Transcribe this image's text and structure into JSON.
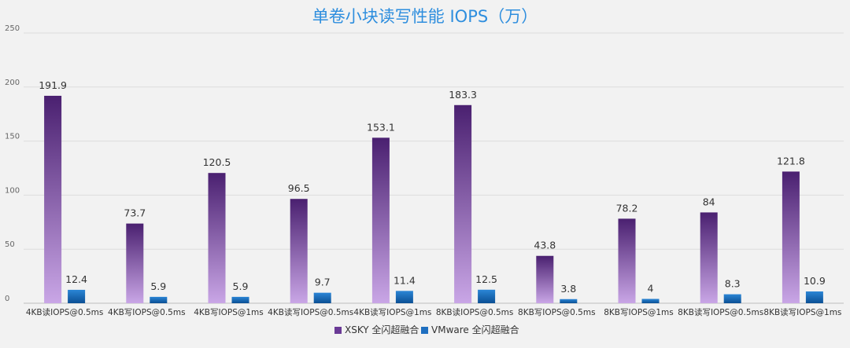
{
  "chart_data": {
    "type": "bar",
    "title": "单卷小块读写性能 IOPS（万）",
    "xlabel": "",
    "ylabel": "",
    "ylim": [
      0,
      250
    ],
    "yticks": [
      0,
      50,
      100,
      150,
      200,
      250
    ],
    "grid": true,
    "legend_position": "bottom",
    "categories": [
      "4KB读IOPS@0.5ms",
      "4KB写IOPS@0.5ms",
      "4KB写IOPS@1ms",
      "4KB读写IOPS@0.5ms",
      "4KB读写IOPS@1ms",
      "8KB读IOPS@0.5ms",
      "8KB写IOPS@0.5ms",
      "8KB写IOPS@1ms",
      "8KB读写IOPS@0.5ms",
      "8KB读写IOPS@1ms"
    ],
    "series": [
      {
        "name": "XSKY 全闪超融合",
        "color": "#6a3a96",
        "values": [
          191.9,
          73.7,
          120.5,
          96.5,
          153.1,
          183.3,
          43.8,
          78.2,
          84,
          121.8
        ]
      },
      {
        "name": "VMware 全闪超融合",
        "color": "#1f6fc0",
        "values": [
          12.4,
          5.9,
          5.9,
          9.7,
          11.4,
          12.5,
          3.8,
          4,
          8.3,
          10.9
        ]
      }
    ]
  }
}
